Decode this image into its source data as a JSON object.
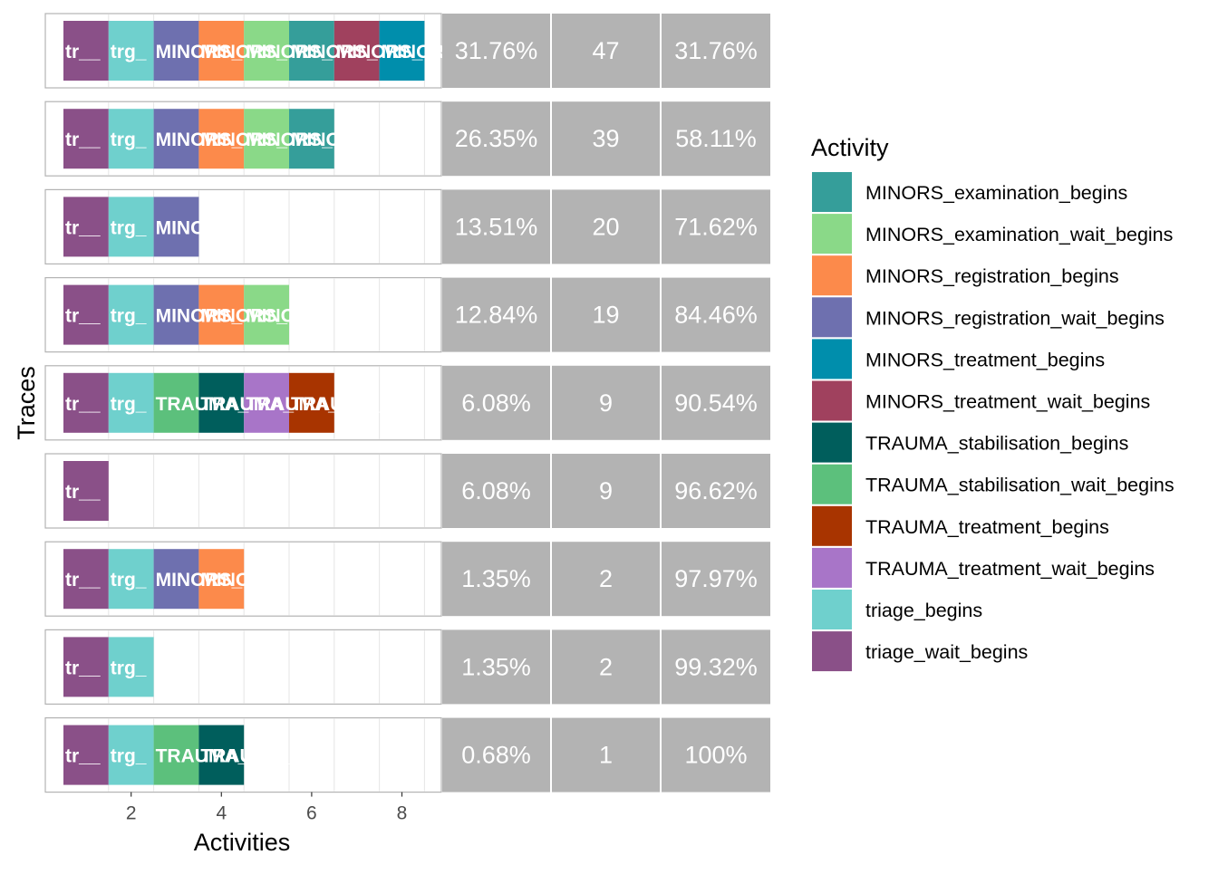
{
  "chart_data": {
    "type": "bar",
    "subtype": "trace-explorer",
    "xlabel": "Activities",
    "ylabel": "Traces",
    "x_ticks": [
      2,
      4,
      6,
      8
    ],
    "xlim": [
      0.5,
      8.5
    ],
    "grid": true,
    "legend": {
      "title": "Activity",
      "placement": "right",
      "items": [
        {
          "label": "MINORS_examination_begins",
          "color": "#359E9A"
        },
        {
          "label": "MINORS_examination_wait_begins",
          "color": "#8AD988"
        },
        {
          "label": "MINORS_registration_begins",
          "color": "#FC8A4B"
        },
        {
          "label": "MINORS_registration_wait_begins",
          "color": "#6E70AF"
        },
        {
          "label": "MINORS_treatment_begins",
          "color": "#008EAC"
        },
        {
          "label": "MINORS_treatment_wait_begins",
          "color": "#A0415E"
        },
        {
          "label": "TRAUMA_stabilisation_begins",
          "color": "#005E5C"
        },
        {
          "label": "TRAUMA_stabilisation_wait_begins",
          "color": "#5CC07C"
        },
        {
          "label": "TRAUMA_treatment_begins",
          "color": "#A83400"
        },
        {
          "label": "TRAUMA_treatment_wait_begins",
          "color": "#A875C8"
        },
        {
          "label": "triage_begins",
          "color": "#6FD0CD"
        },
        {
          "label": "triage_wait_begins",
          "color": "#8A5088"
        }
      ]
    },
    "traces": [
      {
        "activities": [
          "triage_wait_begins",
          "triage_begins",
          "MINORS_registration_wait_begins",
          "MINORS_registration_begins",
          "MINORS_examination_wait_begins",
          "MINORS_examination_begins",
          "MINORS_treatment_wait_begins",
          "MINORS_treatment_begins"
        ],
        "relative_frequency": "31.76%",
        "absolute_frequency": "47",
        "cumulative": "31.76%"
      },
      {
        "activities": [
          "triage_wait_begins",
          "triage_begins",
          "MINORS_registration_wait_begins",
          "MINORS_registration_begins",
          "MINORS_examination_wait_begins",
          "MINORS_examination_begins"
        ],
        "relative_frequency": "26.35%",
        "absolute_frequency": "39",
        "cumulative": "58.11%"
      },
      {
        "activities": [
          "triage_wait_begins",
          "triage_begins",
          "MINORS_registration_wait_begins"
        ],
        "relative_frequency": "13.51%",
        "absolute_frequency": "20",
        "cumulative": "71.62%"
      },
      {
        "activities": [
          "triage_wait_begins",
          "triage_begins",
          "MINORS_registration_wait_begins",
          "MINORS_registration_begins",
          "MINORS_examination_wait_begins"
        ],
        "relative_frequency": "12.84%",
        "absolute_frequency": "19",
        "cumulative": "84.46%"
      },
      {
        "activities": [
          "triage_wait_begins",
          "triage_begins",
          "TRAUMA_stabilisation_wait_begins",
          "TRAUMA_stabilisation_begins",
          "TRAUMA_treatment_wait_begins",
          "TRAUMA_treatment_begins"
        ],
        "relative_frequency": "6.08%",
        "absolute_frequency": "9",
        "cumulative": "90.54%"
      },
      {
        "activities": [
          "triage_wait_begins"
        ],
        "relative_frequency": "6.08%",
        "absolute_frequency": "9",
        "cumulative": "96.62%"
      },
      {
        "activities": [
          "triage_wait_begins",
          "triage_begins",
          "MINORS_registration_wait_begins",
          "MINORS_registration_begins"
        ],
        "relative_frequency": "1.35%",
        "absolute_frequency": "2",
        "cumulative": "97.97%"
      },
      {
        "activities": [
          "triage_wait_begins",
          "triage_begins"
        ],
        "relative_frequency": "1.35%",
        "absolute_frequency": "2",
        "cumulative": "99.32%"
      },
      {
        "activities": [
          "triage_wait_begins",
          "triage_begins",
          "TRAUMA_stabilisation_wait_begins",
          "TRAUMA_stabilisation_begins"
        ],
        "relative_frequency": "0.68%",
        "absolute_frequency": "1",
        "cumulative": "100%"
      }
    ]
  },
  "activity_abbrev": {
    "triage_wait_begins": "tr__",
    "triage_begins": "trg_",
    "MINORS_registration_wait_begins": "MINORS_",
    "MINORS_registration_begins": "MINORS_",
    "MINORS_examination_wait_begins": "MINORS_",
    "MINORS_examination_begins": "MINORS_",
    "MINORS_treatment_wait_begins": "MINORS_",
    "MINORS_treatment_begins": "MINORS_",
    "TRAUMA_stabilisation_wait_begins": "TRAUMA_",
    "TRAUMA_stabilisation_begins": "TRAUMA_",
    "TRAUMA_treatment_wait_begins": "TRAUMA_",
    "TRAUMA_treatment_begins": "TRAUMA_"
  }
}
